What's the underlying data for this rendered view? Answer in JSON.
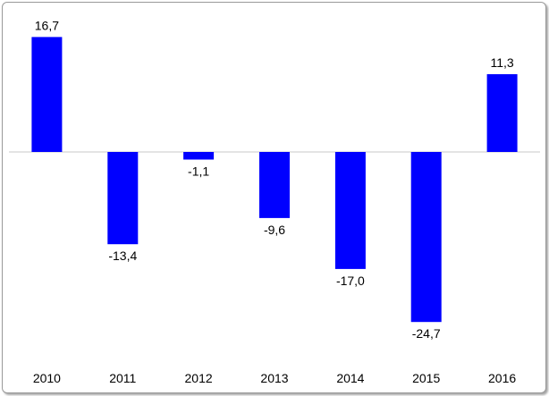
{
  "chart_data": {
    "type": "bar",
    "categories": [
      "2010",
      "2011",
      "2012",
      "2013",
      "2014",
      "2015",
      "2016"
    ],
    "values": [
      16.7,
      -13.4,
      -1.1,
      -9.6,
      -17.0,
      -24.7,
      11.3
    ],
    "data_labels": [
      "16,7",
      "-13,4",
      "-1,1",
      "-9,6",
      "-17,0",
      "-24,7",
      "11,3"
    ],
    "title": "",
    "xlabel": "",
    "ylabel": "",
    "ylim": [
      -30,
      20
    ],
    "grid": false,
    "legend": "none",
    "bar_color": "#0000FF",
    "zero_line_color": "#c8c8c8"
  }
}
